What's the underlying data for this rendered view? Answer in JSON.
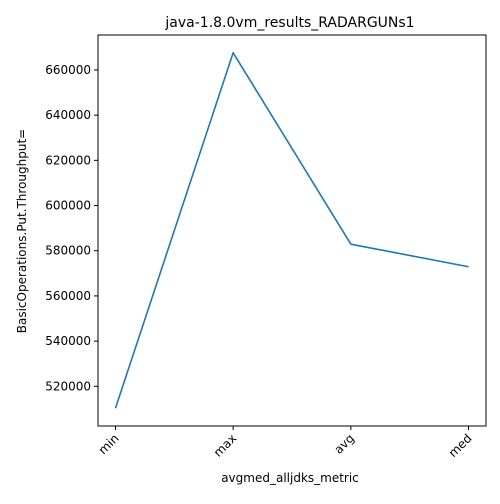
{
  "chart_data": {
    "type": "line",
    "title": "java-1.8.0vm_results_RADARGUNs1",
    "xlabel": "avgmed_alljdks_metric",
    "ylabel": "BasicOperations.Put.Throughput=",
    "categories": [
      "min",
      "max",
      "avg",
      "med"
    ],
    "series": [
      {
        "values": [
          510300,
          667600,
          582900,
          572900
        ],
        "color": "#1f77b4"
      }
    ],
    "yticks": [
      520000,
      540000,
      560000,
      580000,
      600000,
      620000,
      640000,
      660000
    ],
    "ytick_labels": [
      "520000",
      "540000",
      "560000",
      "580000",
      "600000",
      "620000",
      "640000",
      "660000"
    ],
    "ylim": [
      502432,
      675468
    ],
    "grid": false,
    "legend": "none"
  }
}
